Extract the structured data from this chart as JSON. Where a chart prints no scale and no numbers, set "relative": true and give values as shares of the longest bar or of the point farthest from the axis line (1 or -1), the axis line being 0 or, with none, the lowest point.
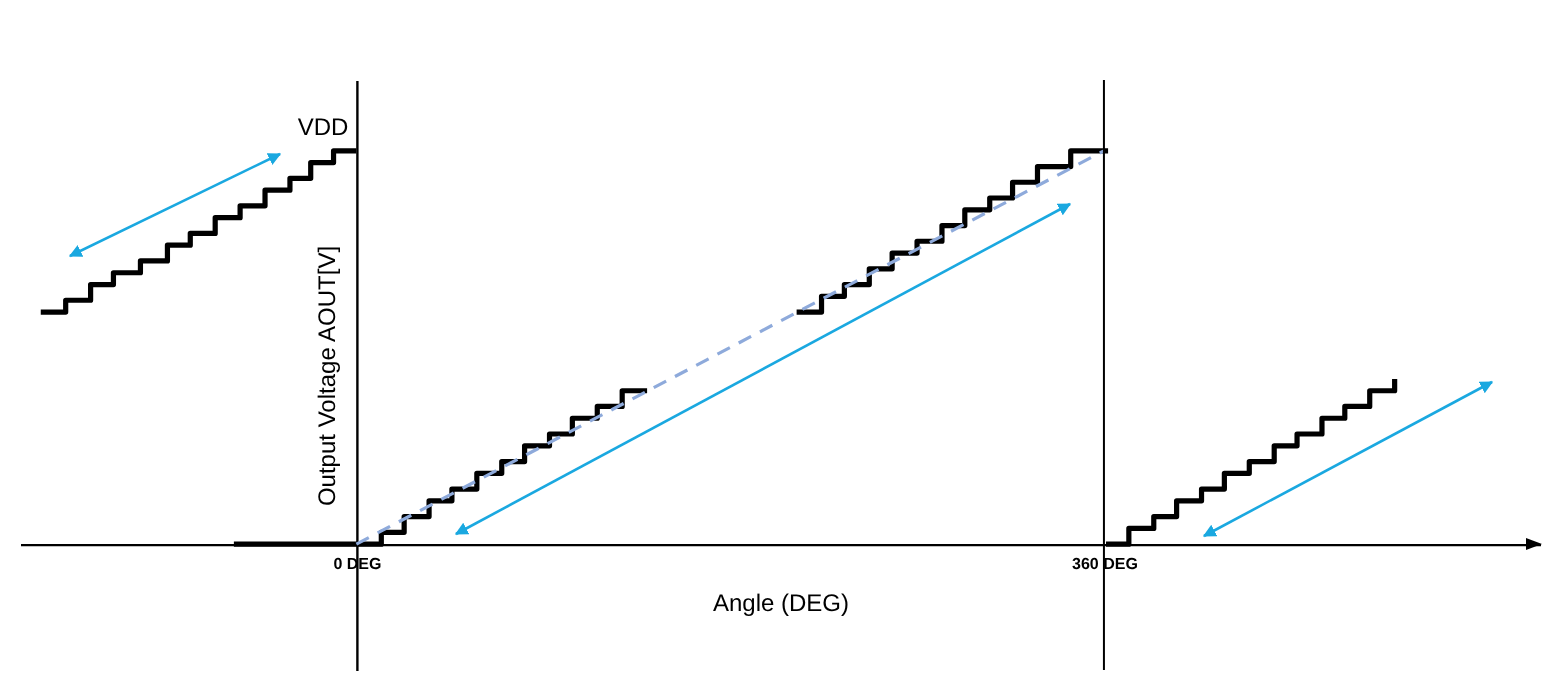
{
  "chart_data": {
    "type": "step",
    "xlabel": "Angle (DEG)",
    "ylabel": "Output Voltage AOUT[V]",
    "relative": true,
    "tick_labels": "x",
    "grid": false,
    "xlim": [
      -162,
      570
    ],
    "xticks": [
      {
        "value": 0,
        "label": "0 DEG"
      },
      {
        "value": 360,
        "label": "360 DEG"
      }
    ],
    "annotations": [
      {
        "text": "VDD",
        "x": 0,
        "y": 1
      }
    ],
    "ref_lines": [
      {
        "axis": "x",
        "value": 360,
        "color": "#000000"
      }
    ],
    "series": [
      {
        "color": "#000000",
        "x": [
          -152,
          -140,
          -128,
          -117,
          -104,
          -91,
          -80,
          -68,
          -56,
          -44,
          -32,
          -22,
          -11,
          0
        ],
        "values": [
          0.59,
          0.62,
          0.66,
          0.69,
          0.72,
          0.76,
          0.79,
          0.83,
          0.86,
          0.9,
          0.93,
          0.97,
          1,
          1
        ]
      },
      {
        "color": "#000000",
        "x": [
          -59,
          0,
          12,
          23,
          35,
          46,
          58,
          70,
          81,
          93,
          104,
          116,
          128,
          140,
          176,
          212,
          224,
          235,
          247,
          258,
          270,
          282,
          293,
          305,
          316,
          328,
          344,
          362
        ],
        "values": [
          0,
          0,
          0.03,
          0.07,
          0.11,
          0.14,
          0.18,
          0.21,
          0.25,
          0.28,
          0.32,
          0.35,
          0.39,
          0.39,
          null,
          0.59,
          0.63,
          0.66,
          0.7,
          0.74,
          0.77,
          0.81,
          0.85,
          0.88,
          0.92,
          0.96,
          1,
          1
        ]
      },
      {
        "color": "#000000",
        "x": [
          361,
          372,
          384,
          395,
          407,
          418,
          430,
          442,
          453,
          465,
          476,
          488,
          500
        ],
        "values": [
          0,
          0.04,
          0.07,
          0.11,
          0.14,
          0.18,
          0.21,
          0.25,
          0.28,
          0.32,
          0.35,
          0.39,
          0.42
        ]
      },
      {
        "type": "line",
        "color": "#8eaadb",
        "line_style": "dashed",
        "x": [
          0,
          360
        ],
        "values": [
          0,
          1
        ]
      }
    ]
  }
}
